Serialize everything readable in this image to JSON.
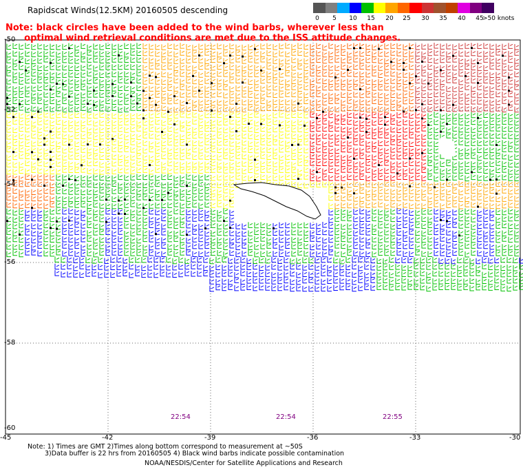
{
  "title": "Rapidscat Winds(12.5KM) 20160505 descending",
  "note": "Note: black circles have been added to the wind barbs, wherever less than\n      optimal wind retrieval conditions are met due to the ISS attitude changes.",
  "scale": {
    "colors": [
      "#555555",
      "#808080",
      "#00aaff",
      "#0000ff",
      "#00c000",
      "#ffff00",
      "#ffa500",
      "#ff6600",
      "#ff0000",
      "#cc3333",
      "#a0522d",
      "#c04000",
      "#e000e0",
      "#800080",
      "#400060"
    ],
    "labels": [
      "0",
      "5",
      "10",
      "15",
      "20",
      "25",
      "30",
      "35",
      "40",
      "45",
      ">50 knots"
    ]
  },
  "lat_labels": [
    "-50",
    "-52",
    "-54",
    "-56",
    "-58",
    "-60"
  ],
  "lon_labels": [
    "-45",
    "-42",
    "-39",
    "-36",
    "-33",
    "-30"
  ],
  "time_labels": [
    "22:54",
    "22:54",
    "22:55"
  ],
  "footer": {
    "line1": "Note: 1) Times are GMT 2)Times along bottom correspond to measurement at ~50S",
    "line2": "3)Data buffer is 22 hrs from 20160505 4) Black wind barbs indicate possible contamination",
    "line3": "NOAA/NESDIS/Center for Satellite Applications and Research"
  }
}
